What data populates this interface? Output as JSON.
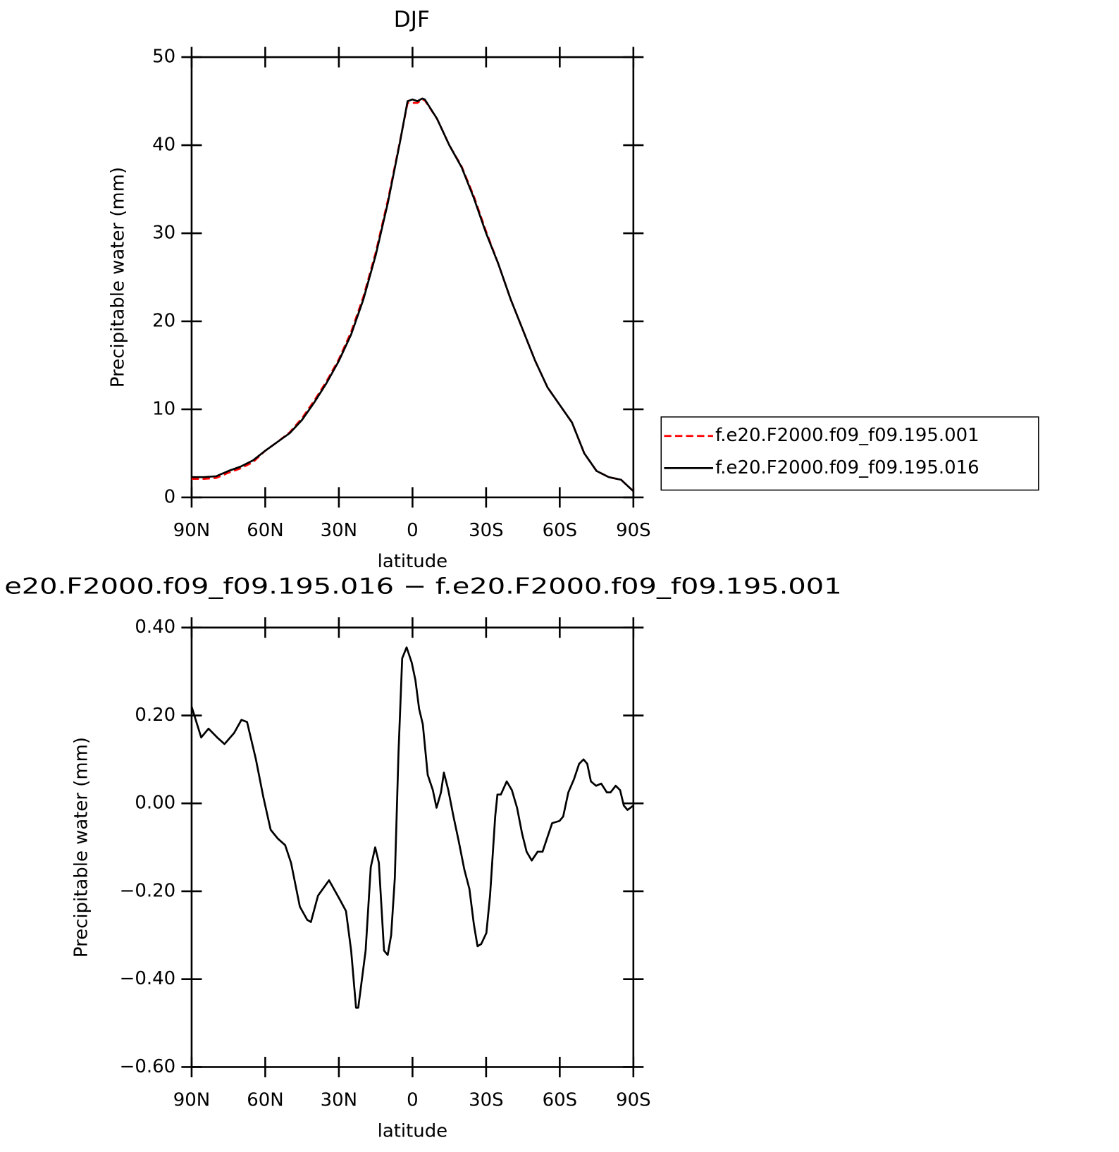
{
  "chart_data": [
    {
      "type": "line",
      "title": "DJF",
      "xlabel": "latitude",
      "ylabel": "Precipitable water (mm)",
      "x": [
        90,
        85,
        80,
        75,
        70,
        65,
        60,
        55,
        50,
        45,
        40,
        35,
        30,
        25,
        20,
        15,
        10,
        5,
        2,
        0,
        -2,
        -4,
        -5,
        -10,
        -15,
        -20,
        -25,
        -30,
        -35,
        -40,
        -45,
        -50,
        -55,
        -60,
        -65,
        -70,
        -75,
        -80,
        -85,
        -90
      ],
      "series": [
        {
          "name": "f.e20.F2000.f09_f09.195.001",
          "color": "#ff0000",
          "linestyle": "dashed",
          "values": [
            2.1,
            2.1,
            2.2,
            2.8,
            3.3,
            4.0,
            5.3,
            6.3,
            7.4,
            9.0,
            11.0,
            13.2,
            15.7,
            18.8,
            22.8,
            27.8,
            33.8,
            40.6,
            44.8,
            44.8,
            44.8,
            45.2,
            45.1,
            43.0,
            40.0,
            37.6,
            34.2,
            30.2,
            26.5,
            22.5,
            19.0,
            15.5,
            12.5,
            10.5,
            8.5,
            5.0,
            3.0,
            2.3,
            2.0,
            0.7
          ]
        },
        {
          "name": "f.e20.F2000.f09_f09.195.016",
          "color": "#000000",
          "linestyle": "solid",
          "values": [
            2.3,
            2.3,
            2.4,
            3.0,
            3.5,
            4.2,
            5.3,
            6.3,
            7.3,
            8.8,
            10.8,
            13.0,
            15.5,
            18.5,
            22.5,
            27.5,
            33.5,
            40.5,
            45.0,
            45.2,
            45.0,
            45.3,
            45.2,
            43.0,
            40.0,
            37.5,
            34.0,
            30.0,
            26.5,
            22.5,
            19.0,
            15.5,
            12.5,
            10.5,
            8.5,
            5.0,
            3.0,
            2.3,
            2.0,
            0.7
          ]
        }
      ],
      "xlim": [
        90,
        -90
      ],
      "xticks": [
        {
          "value": 90,
          "label": "90N"
        },
        {
          "value": 60,
          "label": "60N"
        },
        {
          "value": 30,
          "label": "30N"
        },
        0,
        {
          "value": -30,
          "label": "30S"
        },
        {
          "value": -60,
          "label": "60S"
        },
        {
          "value": -90,
          "label": "90S"
        }
      ],
      "ylim": [
        0,
        50
      ],
      "yticks": [
        0,
        10,
        20,
        30,
        40,
        50
      ],
      "legend": "right"
    },
    {
      "type": "line",
      "title": "e20.F2000.f09_f09.195.016 − f.e20.F2000.f09_f09.195.001",
      "xlabel": "latitude",
      "ylabel": "Precipitable water (mm)",
      "x": [
        90,
        86.1,
        83.1,
        79.6,
        76.6,
        72.7,
        69.7,
        67.4,
        63.8,
        60.8,
        57.8,
        54.9,
        51.9,
        49.5,
        45.9,
        42.9,
        41.4,
        38.5,
        34.0,
        29.5,
        27.1,
        25.0,
        23.0,
        22.1,
        19.1,
        17.0,
        15.2,
        13.7,
        11.6,
        10.1,
        8.7,
        7.2,
        5.7,
        4.2,
        2.4,
        0.3,
        -1.2,
        -2.7,
        -4.2,
        -6.2,
        -8.3,
        -9.8,
        -11.6,
        -12.8,
        -14.6,
        -16.7,
        -18.8,
        -21.1,
        -23.2,
        -25.0,
        -26.5,
        -28.0,
        -30.1,
        -31.6,
        -33.7,
        -34.6,
        -36.0,
        -38.4,
        -40.5,
        -42.6,
        -44.7,
        -46.5,
        -48.6,
        -51.0,
        -53.0,
        -54.8,
        -56.9,
        -59.9,
        -61.4,
        -63.5,
        -65.8,
        -67.9,
        -69.7,
        -71.2,
        -72.7,
        -74.8,
        -76.9,
        -79.2,
        -80.7,
        -82.8,
        -84.6,
        -86.1,
        -87.6,
        -90
      ],
      "values": [
        0.22,
        0.15,
        0.17,
        0.15,
        0.135,
        0.16,
        0.19,
        0.185,
        0.1,
        0.015,
        -0.06,
        -0.08,
        -0.095,
        -0.135,
        -0.235,
        -0.265,
        -0.27,
        -0.21,
        -0.175,
        -0.22,
        -0.245,
        -0.335,
        -0.465,
        -0.465,
        -0.335,
        -0.145,
        -0.1,
        -0.135,
        -0.335,
        -0.345,
        -0.3,
        -0.17,
        0.115,
        0.33,
        0.355,
        0.32,
        0.28,
        0.215,
        0.18,
        0.065,
        0.03,
        -0.01,
        0.025,
        0.07,
        0.03,
        -0.03,
        -0.085,
        -0.15,
        -0.195,
        -0.275,
        -0.325,
        -0.32,
        -0.295,
        -0.21,
        -0.03,
        0.02,
        0.02,
        0.05,
        0.03,
        -0.01,
        -0.07,
        -0.11,
        -0.13,
        -0.11,
        -0.11,
        -0.08,
        -0.045,
        -0.04,
        -0.03,
        0.025,
        0.055,
        0.09,
        0.1,
        0.09,
        0.05,
        0.04,
        0.045,
        0.025,
        0.025,
        0.04,
        0.03,
        -0.005,
        -0.015,
        -0.005
      ],
      "color": "#000000",
      "xlim": [
        90,
        -90
      ],
      "xticks": [
        {
          "value": 90,
          "label": "90N"
        },
        {
          "value": 60,
          "label": "60N"
        },
        {
          "value": 30,
          "label": "30N"
        },
        0,
        {
          "value": -30,
          "label": "30S"
        },
        {
          "value": -60,
          "label": "60S"
        },
        {
          "value": -90,
          "label": "90S"
        }
      ],
      "ylim": [
        -0.6,
        0.4
      ],
      "yticks": [
        {
          "value": -0.6,
          "label": "−0.60"
        },
        {
          "value": -0.4,
          "label": "−0.40"
        },
        {
          "value": -0.2,
          "label": "−0.20"
        },
        {
          "value": 0,
          "label": "0.00"
        },
        {
          "value": 0.2,
          "label": "0.20"
        },
        {
          "value": 0.4,
          "label": "0.40"
        }
      ]
    }
  ]
}
